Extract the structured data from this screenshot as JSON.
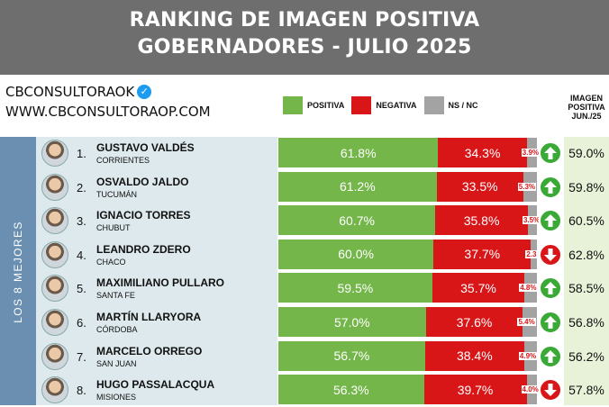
{
  "header": {
    "title_line1": "RANKING DE IMAGEN POSITIVA",
    "title_line2": "GOBERNADORES - JULIO 2025"
  },
  "brand": {
    "handle": "CBCONSULTORAOK",
    "website": "WWW.CBCONSULTORAOP.COM"
  },
  "legend": {
    "positiva": "POSITIVA",
    "negativa": "NEGATIVA",
    "nsnc": "NS / NC"
  },
  "june_header": [
    "IMAGEN",
    "POSITIVA",
    "JUN./25"
  ],
  "side_label": "LOS 8 MEJORES",
  "colors": {
    "positiva": "#74b64a",
    "negativa": "#d81618",
    "nsnc": "#a3a3a3",
    "up": "#3aa935",
    "down": "#d81618"
  },
  "chart_data": {
    "type": "bar",
    "stacked": true,
    "orientation": "horizontal",
    "title": "RANKING DE IMAGEN POSITIVA GOBERNADORES - JULIO 2025",
    "categories": [
      "GUSTAVO VALDÉS",
      "OSVALDO JALDO",
      "IGNACIO TORRES",
      "LEANDRO ZDERO",
      "MAXIMILIANO PULLARO",
      "MARTÍN LLARYORA",
      "MARCELO ORREGO",
      "HUGO PASSALACQUA"
    ],
    "series": [
      {
        "name": "POSITIVA",
        "values": [
          61.8,
          61.2,
          60.7,
          60.0,
          59.5,
          57.0,
          56.7,
          56.3
        ]
      },
      {
        "name": "NEGATIVA",
        "values": [
          34.3,
          33.5,
          35.8,
          37.7,
          35.7,
          37.6,
          38.4,
          39.7
        ]
      },
      {
        "name": "NS / NC",
        "values": [
          3.9,
          5.3,
          3.5,
          2.3,
          4.8,
          5.4,
          4.9,
          4.0
        ]
      }
    ]
  },
  "rows": [
    {
      "rank": "1.",
      "name": "GUSTAVO VALDÉS",
      "province": "CORRIENTES",
      "pos": 61.8,
      "neg": 34.3,
      "ns": 3.9,
      "pos_label": "61.8%",
      "neg_label": "34.3%",
      "ns_label": "3.9%",
      "trend": "up",
      "june": "59.0%"
    },
    {
      "rank": "2.",
      "name": "OSVALDO JALDO",
      "province": "TUCUMÁN",
      "pos": 61.2,
      "neg": 33.5,
      "ns": 5.3,
      "pos_label": "61.2%",
      "neg_label": "33.5%",
      "ns_label": "5.3%",
      "trend": "up",
      "june": "59.8%"
    },
    {
      "rank": "3.",
      "name": "IGNACIO TORRES",
      "province": "CHUBUT",
      "pos": 60.7,
      "neg": 35.8,
      "ns": 3.5,
      "pos_label": "60.7%",
      "neg_label": "35.8%",
      "ns_label": "3.5%",
      "trend": "up",
      "june": "60.5%"
    },
    {
      "rank": "4.",
      "name": "LEANDRO ZDERO",
      "province": "CHACO",
      "pos": 60.0,
      "neg": 37.7,
      "ns": 2.3,
      "pos_label": "60.0%",
      "neg_label": "37.7%",
      "ns_label": "2.3",
      "trend": "down",
      "june": "62.8%"
    },
    {
      "rank": "5.",
      "name": "MAXIMILIANO PULLARO",
      "province": "SANTA FE",
      "pos": 59.5,
      "neg": 35.7,
      "ns": 4.8,
      "pos_label": "59.5%",
      "neg_label": "35.7%",
      "ns_label": "4.8%",
      "trend": "up",
      "june": "58.5%"
    },
    {
      "rank": "6.",
      "name": "MARTÍN LLARYORA",
      "province": "CÓRDOBA",
      "pos": 57.0,
      "neg": 37.6,
      "ns": 5.4,
      "pos_label": "57.0%",
      "neg_label": "37.6%",
      "ns_label": "5.4%",
      "trend": "up",
      "june": "56.8%"
    },
    {
      "rank": "7.",
      "name": "MARCELO ORREGO",
      "province": "SAN JUAN",
      "pos": 56.7,
      "neg": 38.4,
      "ns": 4.9,
      "pos_label": "56.7%",
      "neg_label": "38.4%",
      "ns_label": "4.9%",
      "trend": "up",
      "june": "56.2%"
    },
    {
      "rank": "8.",
      "name": "HUGO PASSALACQUA",
      "province": "MISIONES",
      "pos": 56.3,
      "neg": 39.7,
      "ns": 4.0,
      "pos_label": "56.3%",
      "neg_label": "39.7%",
      "ns_label": "4.0%",
      "trend": "down",
      "june": "57.8%"
    }
  ]
}
